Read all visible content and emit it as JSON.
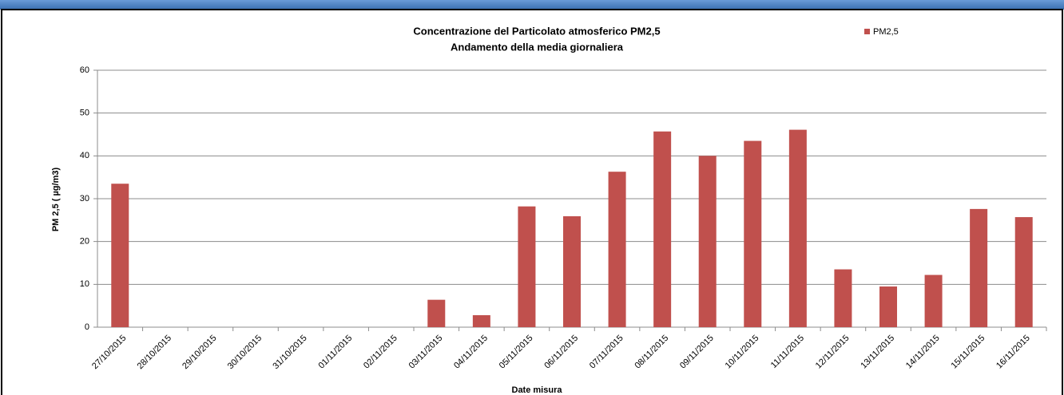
{
  "chart_data": {
    "type": "bar",
    "title": "Concentrazione del Particolato atmosferico PM2,5",
    "subtitle": "Andamento della media giornaliera",
    "y_label": "PM 2,5 ( µg/m3)",
    "x_label": "Date misura",
    "categories": [
      "27/10/2015",
      "28/10/2015",
      "29/10/2015",
      "30/10/2015",
      "31/10/2015",
      "01/11/2015",
      "02/11/2015",
      "03/11/2015",
      "04/11/2015",
      "05/11/2015",
      "06/11/2015",
      "07/11/2015",
      "08/11/2015",
      "09/11/2015",
      "10/11/2015",
      "11/11/2015",
      "12/11/2015",
      "13/11/2015",
      "14/11/2015",
      "15/11/2015",
      "16/11/2015"
    ],
    "series": [
      {
        "name": "PM2,5",
        "color": "#c0504d",
        "values": [
          33.5,
          null,
          null,
          null,
          null,
          null,
          null,
          6.4,
          2.8,
          28.2,
          25.9,
          36.3,
          45.7,
          40.0,
          43.5,
          46.1,
          13.5,
          9.5,
          12.2,
          27.6,
          25.7
        ]
      }
    ],
    "ylim": [
      0,
      60
    ],
    "yticks": [
      0,
      10,
      20,
      30,
      40,
      50,
      60
    ],
    "grid": true,
    "legend": "top-right"
  }
}
